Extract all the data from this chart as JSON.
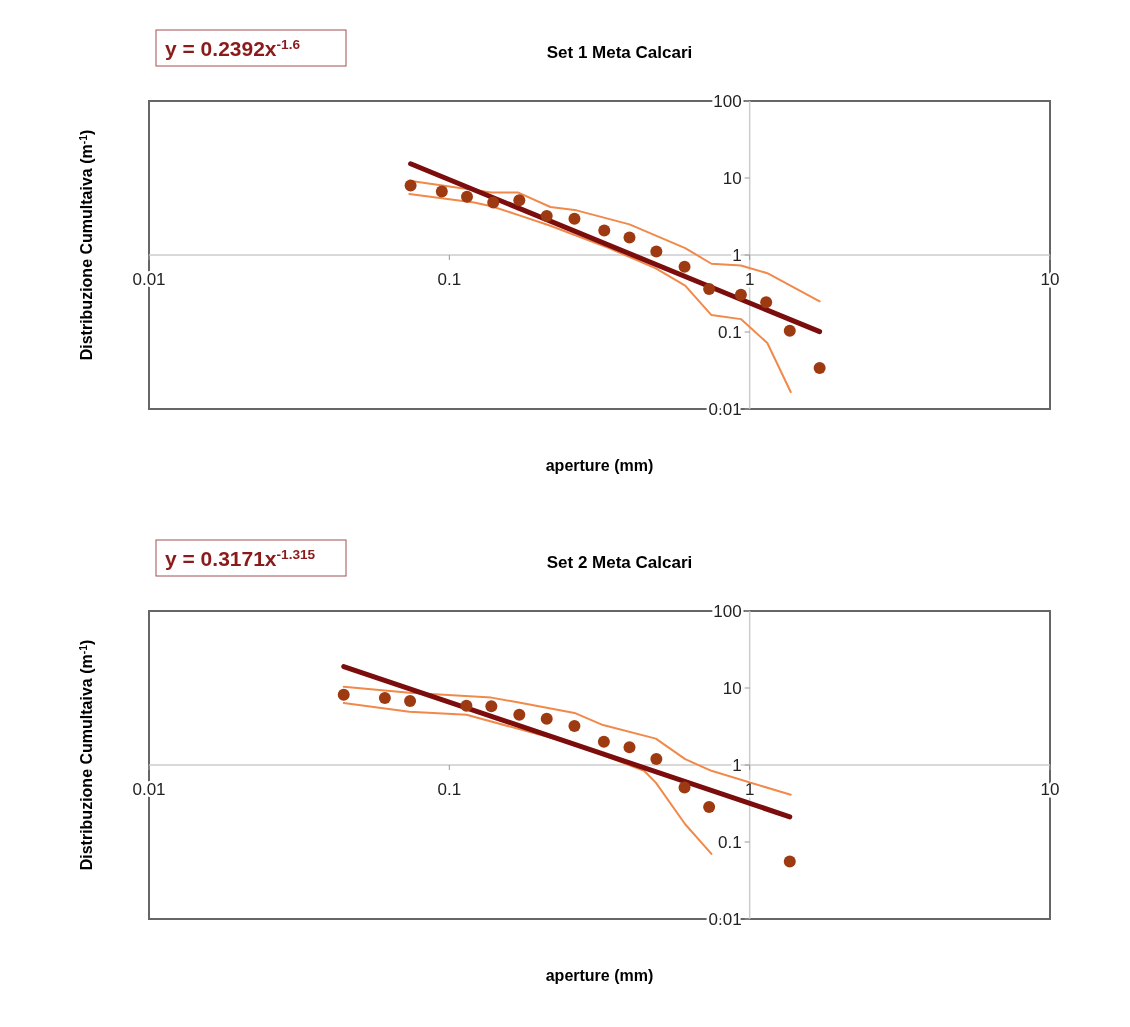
{
  "chart_data": [
    {
      "type": "scatter",
      "title": "Set 1 Meta Calcari",
      "xlabel": "aperture (mm)",
      "ylabel": "Distribuzione Cumultaiva (m$^{-1}$)",
      "annotations": [
        "y = 0.2392x$^{-1.6}$"
      ],
      "log": "xy",
      "xlim": [
        0.01,
        10
      ],
      "ylim": [
        0.01,
        100
      ],
      "xticks": [
        0.01,
        0.1,
        1,
        10
      ],
      "yticks": [
        0.01,
        0.1,
        1,
        10,
        100
      ],
      "grid": false,
      "series": [
        {
          "type": "line",
          "color": "#f0894a",
          "line_style": "solid",
          "x": [
            0.0736,
            0.138,
            0.169,
            0.217,
            0.265,
            0.398,
            0.61,
            0.746,
            0.935,
            1.145,
            1.71
          ],
          "values": [
            9.2,
            6.5,
            6.5,
            4.2,
            3.8,
            2.5,
            1.23,
            0.77,
            0.73,
            0.58,
            0.25
          ]
        },
        {
          "type": "line",
          "color": "#f0894a",
          "line_style": "solid",
          "x": [
            0.0736,
            0.121,
            0.138,
            0.174,
            0.217,
            0.34,
            0.487,
            0.61,
            0.746,
            0.935,
            1.145,
            1.37
          ],
          "values": [
            6.2,
            4.8,
            4.3,
            3.2,
            2.4,
            1.23,
            0.67,
            0.4,
            0.166,
            0.147,
            0.072,
            0.0166
          ]
        },
        {
          "type": "line",
          "color": "#7b0d0d",
          "line_style": "solid",
          "x": [
            0.0743,
            1.71
          ],
          "values": [
            15.3,
            0.101
          ]
        },
        {
          "color": "#9e3a12",
          "marker": "circle",
          "x": [
            0.0743,
            0.0944,
            0.1145,
            0.14,
            0.171,
            0.211,
            0.261,
            0.328,
            0.398,
            0.489,
            0.607,
            0.733,
            0.935,
            1.135,
            1.36,
            1.71
          ],
          "values": [
            7.97,
            6.7,
            5.7,
            4.8,
            5.15,
            3.2,
            2.95,
            2.08,
            1.69,
            1.11,
            0.705,
            0.363,
            0.305,
            0.243,
            0.104,
            0.034
          ]
        }
      ]
    },
    {
      "type": "scatter",
      "title": "Set 2  Meta Calcari",
      "xlabel": "aperture (mm)",
      "ylabel": "Distribuzione Cumultaiva (m$^{-1}$)",
      "annotations": [
        "y = 0.3171x$^{-1.315}$"
      ],
      "log": "xy",
      "xlim": [
        0.01,
        10
      ],
      "ylim": [
        0.01,
        100
      ],
      "xticks": [
        0.01,
        0.1,
        1,
        10
      ],
      "yticks": [
        0.01,
        0.1,
        1,
        10,
        100
      ],
      "grid": false,
      "series": [
        {
          "type": "line",
          "color": "#f0894a",
          "line_style": "solid",
          "x": [
            0.0445,
            0.0736,
            0.138,
            0.174,
            0.261,
            0.325,
            0.487,
            0.61,
            0.746,
            1.37
          ],
          "values": [
            10.4,
            8.7,
            7.5,
            6.4,
            4.75,
            3.3,
            2.2,
            1.19,
            0.84,
            0.41
          ]
        },
        {
          "type": "line",
          "color": "#f0894a",
          "line_style": "solid",
          "x": [
            0.0445,
            0.0736,
            0.114,
            0.261,
            0.445,
            0.487,
            0.61,
            0.746
          ],
          "values": [
            6.4,
            4.9,
            4.5,
            1.86,
            0.84,
            0.59,
            0.17,
            0.07
          ]
        },
        {
          "type": "line",
          "color": "#7b0d0d",
          "line_style": "solid",
          "x": [
            0.0445,
            1.36
          ],
          "values": [
            19.0,
            0.212
          ]
        },
        {
          "color": "#9e3a12",
          "marker": "circle",
          "x": [
            0.0445,
            0.061,
            0.074,
            0.114,
            0.138,
            0.171,
            0.211,
            0.261,
            0.327,
            0.398,
            0.489,
            0.607,
            0.733,
            1.36
          ],
          "values": [
            8.2,
            7.4,
            6.8,
            5.9,
            5.8,
            4.5,
            4.0,
            3.2,
            2.0,
            1.7,
            1.2,
            0.51,
            0.284,
            0.056
          ]
        }
      ]
    }
  ]
}
